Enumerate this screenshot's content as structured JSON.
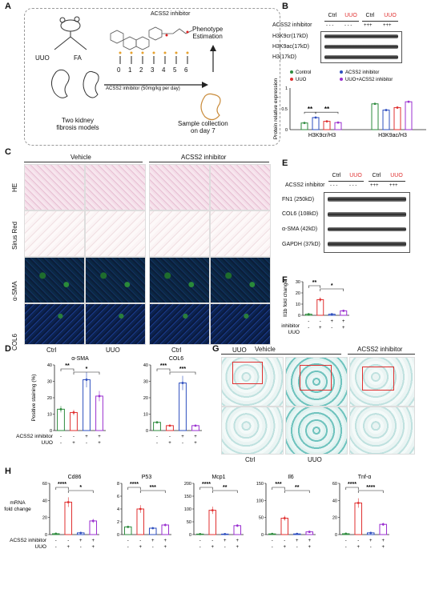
{
  "panels": [
    "A",
    "B",
    "C",
    "D",
    "E",
    "F",
    "G",
    "H"
  ],
  "panelA": {
    "inhibitor_title": "ACSS2 inhibitor",
    "left_labels": [
      "UUO",
      "FA"
    ],
    "models_label": "Two kidney\nfibrosis models",
    "days": [
      "0",
      "1",
      "2",
      "3",
      "4",
      "5",
      "6"
    ],
    "dose_label": "ACSS2 inhibitor (50mg/kg per day)",
    "phenotype": "Phenotype\nEstimation",
    "collection": "Sample collection\non day 7"
  },
  "panelB": {
    "lanes": [
      "Ctrl",
      "UUO",
      "Ctrl",
      "UUO"
    ],
    "inhibitor_label": "ACSS2 inhibitor",
    "inhibitor_signs": [
      "- - -",
      "- - -",
      "+++",
      "+++"
    ],
    "bands": [
      "H3K9cr(17kD)",
      "H3K9ac(17kD)",
      "H3(17kD)"
    ],
    "legend": [
      {
        "label": "Control",
        "color": "#2e8b3e"
      },
      {
        "label": "ACSS2 inhibitor",
        "color": "#2e4fbf"
      },
      {
        "label": "UUO",
        "color": "#e03030"
      },
      {
        "label": "UUO+ACSS2 inhibitor",
        "color": "#9b30d0"
      }
    ],
    "ylabel": "Protein relative expression",
    "groups": [
      "H3K9cr/H3",
      "H3K9ac/H3"
    ],
    "sig": [
      "**",
      "**"
    ]
  },
  "panelC": {
    "top_labels": [
      "Vehicle",
      "ACSS2 inhibitor"
    ],
    "rows": [
      "HE",
      "Sirus Red",
      "α-SMA",
      "COL6"
    ],
    "cols": [
      "Ctrl",
      "UUO",
      "Ctrl",
      "UUO"
    ]
  },
  "panelE": {
    "lanes": [
      "Ctrl",
      "UUO",
      "Ctrl",
      "UUO"
    ],
    "inhibitor_label": "ACSS2 inhibitor",
    "inhibitor_signs": [
      "- - -",
      "- - -",
      "+++",
      "+++"
    ],
    "bands": [
      "FN1 (250kD)",
      "COL6 (108kD)",
      "α-SMA (42kD)",
      "GAPDH (37kD)"
    ]
  },
  "panelF": {
    "ylabel": "Il1b  fold change",
    "sig": [
      "**",
      "*"
    ]
  },
  "panelG": {
    "top_labels": [
      "Vehicle",
      "ACSS2 inhibitor"
    ],
    "cols": [
      "Ctrl",
      "UUO"
    ]
  },
  "treatment": {
    "inhibitor_label": "ACSS2 inhibitor",
    "uuo_label": "UUO",
    "inhibitor_signs": [
      "-",
      "-",
      "+",
      "+"
    ],
    "uuo_signs": [
      "-",
      "+",
      "-",
      "+"
    ]
  },
  "panelH_ylabel": "mRNA\nfold change",
  "panelD_ylabel": "Positive staining (%)",
  "colors": {
    "control": "#2e8b3e",
    "uuo": "#e03030",
    "inhib": "#2e4fbf",
    "combo": "#9b30d0"
  },
  "chart_data": [
    {
      "id": "B",
      "type": "bar",
      "categories": [
        "H3K9cr/H3",
        "H3K9ac/H3"
      ],
      "ylim": [
        0,
        1.0
      ],
      "yticks": [
        0,
        0.5,
        1.0
      ],
      "series": [
        {
          "name": "Control",
          "values": [
            0.16,
            0.62
          ]
        },
        {
          "name": "UUO",
          "values": [
            0.29,
            0.47
          ]
        },
        {
          "name": "ACSS2 inhibitor",
          "values": [
            0.2,
            0.53
          ]
        },
        {
          "name": "UUO+ACSS2 inhibitor",
          "values": [
            0.17,
            0.67
          ]
        }
      ]
    },
    {
      "id": "D1",
      "type": "bar",
      "title": "α-SMA",
      "categories": [
        "1",
        "2",
        "3",
        "4"
      ],
      "ylim": [
        0,
        40
      ],
      "yticks": [
        0,
        10,
        20,
        30,
        40
      ],
      "values": [
        13,
        11,
        31,
        21
      ],
      "sig": [
        "**",
        "*"
      ]
    },
    {
      "id": "D2",
      "type": "bar",
      "title": "COL6",
      "categories": [
        "1",
        "2",
        "3",
        "4"
      ],
      "ylim": [
        0,
        40
      ],
      "yticks": [
        0,
        10,
        20,
        30,
        40
      ],
      "values": [
        5,
        3,
        29,
        3
      ],
      "sig": [
        "***",
        "***"
      ]
    },
    {
      "id": "F",
      "type": "bar",
      "categories": [
        "1",
        "2",
        "3",
        "4"
      ],
      "ylim": [
        0,
        30
      ],
      "yticks": [
        0,
        10,
        20,
        30
      ],
      "values": [
        1,
        14,
        1,
        4
      ],
      "sig": [
        "**",
        "*"
      ]
    },
    {
      "id": "H1",
      "type": "bar",
      "title": "Cd86",
      "categories": [
        "1",
        "2",
        "3",
        "4"
      ],
      "ylim": [
        0,
        60
      ],
      "yticks": [
        0,
        20,
        40,
        60
      ],
      "values": [
        1,
        38,
        2,
        16
      ],
      "sig": [
        "****",
        "*"
      ]
    },
    {
      "id": "H2",
      "type": "bar",
      "title": "P53",
      "categories": [
        "1",
        "2",
        "3",
        "4"
      ],
      "ylim": [
        0,
        8
      ],
      "yticks": [
        0,
        2,
        4,
        6,
        8
      ],
      "values": [
        1.2,
        4.0,
        1.0,
        1.5
      ],
      "sig": [
        "****",
        "***"
      ]
    },
    {
      "id": "H3",
      "type": "bar",
      "title": "Mcp1",
      "categories": [
        "1",
        "2",
        "3",
        "4"
      ],
      "ylim": [
        0,
        200
      ],
      "yticks": [
        0,
        50,
        100,
        150,
        200
      ],
      "values": [
        2,
        95,
        2,
        35
      ],
      "sig": [
        "****",
        "**"
      ]
    },
    {
      "id": "H4",
      "type": "bar",
      "title": "Il6",
      "categories": [
        "1",
        "2",
        "3",
        "4"
      ],
      "ylim": [
        0,
        150
      ],
      "yticks": [
        0,
        50,
        100,
        150
      ],
      "values": [
        2,
        48,
        2,
        8
      ],
      "sig": [
        "***",
        "**"
      ]
    },
    {
      "id": "H5",
      "type": "bar",
      "title": "Tnf-α",
      "categories": [
        "1",
        "2",
        "3",
        "4"
      ],
      "ylim": [
        0,
        60
      ],
      "yticks": [
        0,
        20,
        40,
        60
      ],
      "values": [
        1,
        37,
        2,
        12
      ],
      "sig": [
        "****",
        "****"
      ]
    }
  ]
}
